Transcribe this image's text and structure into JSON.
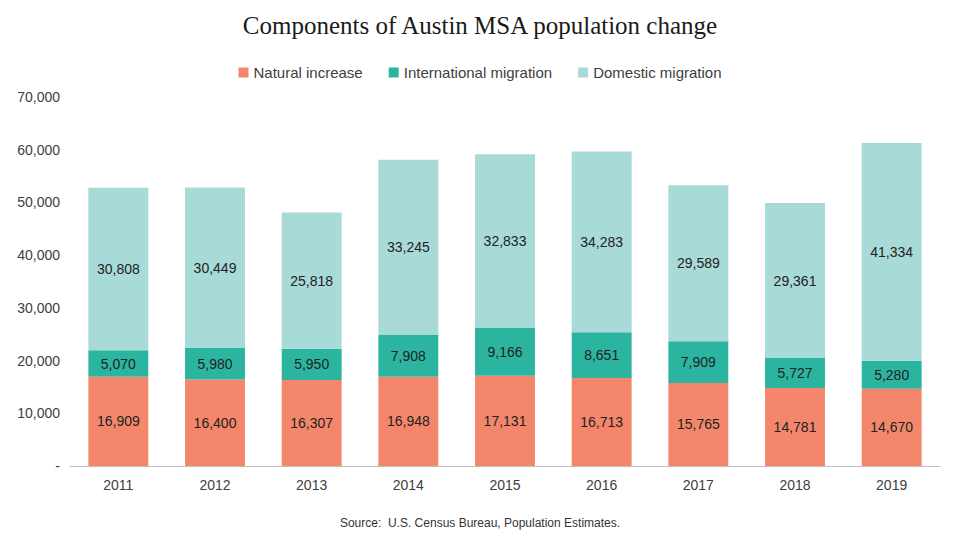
{
  "chart_data": {
    "type": "bar",
    "title": "Components of Austin MSA population change",
    "source": "Source:  U.S. Census Bureau, Population Estimates.",
    "categories": [
      "2011",
      "2012",
      "2013",
      "2014",
      "2015",
      "2016",
      "2017",
      "2018",
      "2019"
    ],
    "series": [
      {
        "name": "Natural increase",
        "color": "#f4876b",
        "values": [
          16909,
          16400,
          16307,
          16948,
          17131,
          16713,
          15765,
          14781,
          14670
        ],
        "value_labels": [
          "16,909",
          "16,400",
          "16,307",
          "16,948",
          "17,131",
          "16,713",
          "15,765",
          "14,781",
          "14,670"
        ]
      },
      {
        "name": "International migration",
        "color": "#2bb5a0",
        "values": [
          5070,
          5980,
          5950,
          7908,
          9166,
          8651,
          7909,
          5727,
          5280
        ],
        "value_labels": [
          "5,070",
          "5,980",
          "5,950",
          "7,908",
          "9,166",
          "8,651",
          "7,909",
          "5,727",
          "5,280"
        ]
      },
      {
        "name": "Domestic migration",
        "color": "#a8dad8",
        "values": [
          30808,
          30449,
          25818,
          33245,
          32833,
          34283,
          29589,
          29361,
          41334
        ],
        "value_labels": [
          "30,808",
          "30,449",
          "25,818",
          "33,245",
          "32,833",
          "34,283",
          "29,589",
          "29,361",
          "41,334"
        ]
      }
    ],
    "ylim": [
      0,
      70000
    ],
    "yticks": [
      {
        "value": 0,
        "label": "-"
      },
      {
        "value": 10000,
        "label": "10,000"
      },
      {
        "value": 20000,
        "label": "20,000"
      },
      {
        "value": 30000,
        "label": "30,000"
      },
      {
        "value": 40000,
        "label": "40,000"
      },
      {
        "value": 50000,
        "label": "50,000"
      },
      {
        "value": 60000,
        "label": "60,000"
      },
      {
        "value": 70000,
        "label": "70,000"
      }
    ],
    "stacked": true,
    "data_labels": true,
    "grid": false,
    "legend": "top"
  }
}
